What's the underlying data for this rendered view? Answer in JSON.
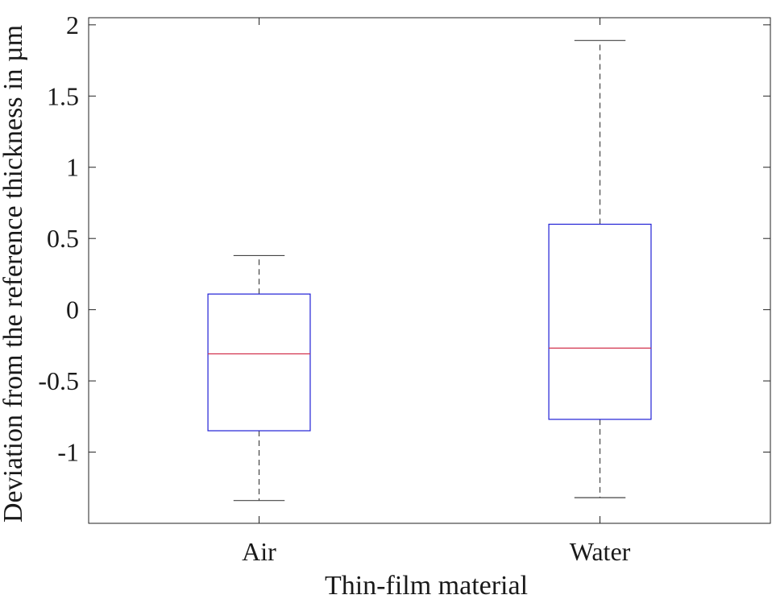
{
  "chart_data": {
    "type": "box",
    "xlabel": "Thin-film material",
    "ylabel": "Deviation from the reference thickness in µm",
    "categories": [
      "Air",
      "Water"
    ],
    "boxes": [
      {
        "category": "Air",
        "whisker_low": -1.34,
        "q1": -0.85,
        "median": -0.31,
        "q3": 0.11,
        "whisker_high": 0.38
      },
      {
        "category": "Water",
        "whisker_low": -1.32,
        "q1": -0.77,
        "median": -0.27,
        "q3": 0.6,
        "whisker_high": 1.89
      }
    ],
    "yticks": [
      -1,
      -0.5,
      0,
      0.5,
      1,
      1.5,
      2
    ],
    "ytick_labels": [
      "-1",
      "-0.5",
      "0",
      "0.5",
      "1",
      "1.5",
      "2"
    ],
    "ylim": [
      -1.5,
      2.05
    ],
    "grid": false,
    "colors": {
      "box": "#1f1fd6",
      "median": "#d2334e",
      "whisker": "#444444",
      "axes": "#222222"
    }
  }
}
